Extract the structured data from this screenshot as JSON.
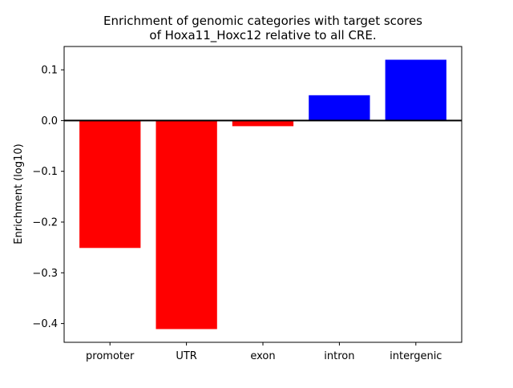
{
  "chart_data": {
    "type": "bar",
    "title_lines": [
      "Enrichment of genomic categories with target scores",
      "of Hoxa11_Hoxc12 relative to all CRE."
    ],
    "xlabel": "",
    "ylabel": "Enrichment (log10)",
    "categories": [
      "promoter",
      "UTR",
      "exon",
      "intron",
      "intergenic"
    ],
    "values": [
      -0.251,
      -0.411,
      -0.011,
      0.05,
      0.12
    ],
    "colors": [
      "#ff0000",
      "#ff0000",
      "#ff0000",
      "#0000ff",
      "#0000ff"
    ],
    "ylim": [
      -0.437,
      0.146
    ],
    "yticks": [
      0.1,
      0.0,
      -0.1,
      -0.2,
      -0.3,
      -0.4
    ],
    "ytick_labels": [
      "0.1",
      "0.0",
      "−0.1",
      "−0.2",
      "−0.3",
      "−0.4"
    ],
    "grid": false,
    "zero_line": true
  }
}
